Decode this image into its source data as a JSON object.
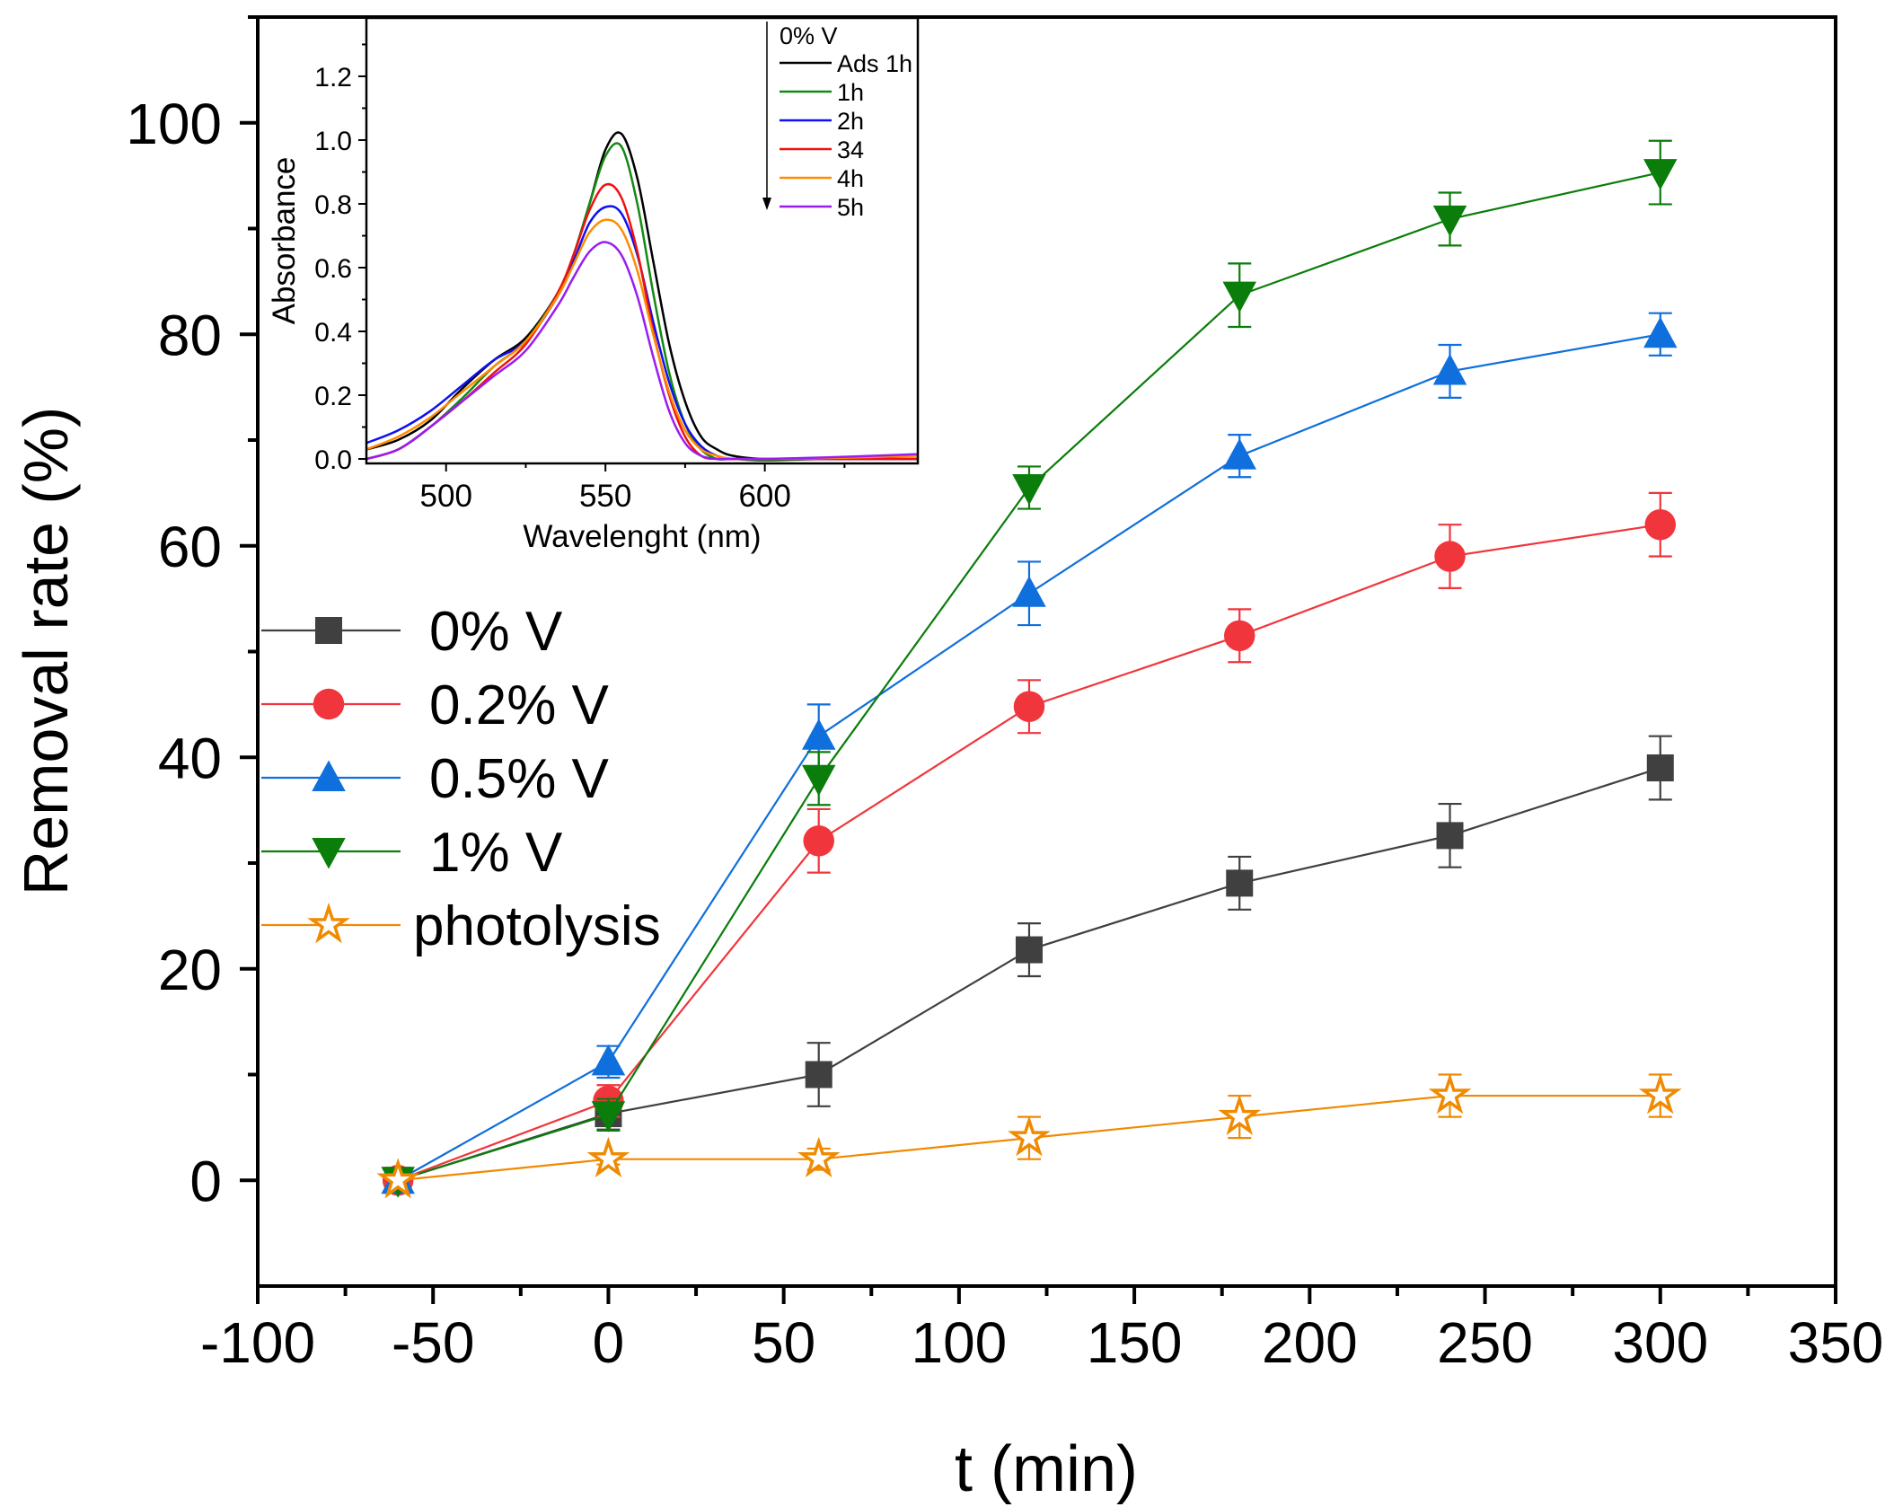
{
  "chart_data": [
    {
      "type": "line",
      "title": "",
      "xlabel": "t (min)",
      "ylabel": "Removal rate (%)",
      "xlim": [
        -100,
        350
      ],
      "ylim": [
        -10,
        110
      ],
      "xticks": [
        -100,
        -50,
        0,
        50,
        100,
        150,
        200,
        250,
        300,
        350
      ],
      "yticks": [
        0,
        20,
        40,
        60,
        80,
        100
      ],
      "legend_position": "center-left",
      "grid": false,
      "x": [
        -60,
        0,
        60,
        120,
        180,
        240,
        300
      ],
      "series": [
        {
          "name": "0% V",
          "marker": "square",
          "color": "#404040",
          "values": [
            0,
            6.3,
            10,
            21.8,
            28.1,
            32.6,
            39
          ],
          "errors": [
            0,
            1.5,
            3,
            2.5,
            2.5,
            3,
            3
          ]
        },
        {
          "name": "0.2% V",
          "marker": "circle",
          "color": "#f0363c",
          "values": [
            0,
            7.5,
            32.1,
            44.8,
            51.5,
            59,
            62
          ],
          "errors": [
            0,
            1.5,
            3,
            2.5,
            2.5,
            3,
            3
          ]
        },
        {
          "name": "0.5% V",
          "marker": "triangle-up",
          "color": "#0f6fdc",
          "values": [
            0,
            11.2,
            42,
            55.5,
            68.5,
            76.5,
            80
          ],
          "errors": [
            0,
            1.5,
            3,
            3,
            2,
            2.5,
            2
          ]
        },
        {
          "name": "1% V",
          "marker": "triangle-down",
          "color": "#0a7d0a",
          "values": [
            0,
            6.2,
            38,
            65.5,
            83.7,
            90.9,
            95.3
          ],
          "errors": [
            0,
            1.5,
            2.5,
            2,
            3,
            2.5,
            3
          ]
        },
        {
          "name": "photolysis",
          "marker": "star-open",
          "color": "#f08a00",
          "values": [
            0,
            2,
            2,
            4,
            6,
            8,
            8
          ],
          "errors": [
            0,
            0.5,
            1,
            2,
            2,
            2,
            2
          ]
        }
      ]
    },
    {
      "type": "line",
      "title": "",
      "xlabel": "Wavelenght (nm)",
      "ylabel": "Absorbance",
      "xlim": [
        475,
        648
      ],
      "ylim": [
        -0.014,
        1.383
      ],
      "xticks": [
        500,
        550,
        600
      ],
      "yticks": [
        "0.0",
        "0.2",
        "0.4",
        "0.6",
        "0.8",
        "1.0",
        "1.2"
      ],
      "legend_title": "0% V",
      "legend_position": "top-right",
      "x": [
        475,
        485,
        495,
        505,
        515,
        525,
        535,
        540,
        545,
        550,
        555,
        560,
        565,
        570,
        575,
        580,
        585,
        590,
        600,
        620,
        648
      ],
      "series": [
        {
          "name": "Ads 1h",
          "color": "#000000",
          "values": [
            0.03,
            0.06,
            0.12,
            0.22,
            0.31,
            0.38,
            0.52,
            0.64,
            0.8,
            0.97,
            1.02,
            0.88,
            0.62,
            0.36,
            0.18,
            0.07,
            0.03,
            0.01,
            0,
            0,
            0
          ]
        },
        {
          "name": "1h",
          "color": "#138a13",
          "values": [
            0,
            0.03,
            0.1,
            0.19,
            0.29,
            0.37,
            0.52,
            0.64,
            0.8,
            0.95,
            0.98,
            0.8,
            0.52,
            0.27,
            0.11,
            0.03,
            0,
            0,
            -0.005,
            0,
            0
          ]
        },
        {
          "name": "2h",
          "color": "#1010f0",
          "values": [
            0.05,
            0.09,
            0.15,
            0.23,
            0.31,
            0.37,
            0.51,
            0.62,
            0.74,
            0.79,
            0.77,
            0.64,
            0.43,
            0.24,
            0.11,
            0.04,
            0.01,
            0,
            0,
            0,
            0
          ]
        },
        {
          "name": "34",
          "color": "#f01010",
          "values": [
            0,
            0.03,
            0.1,
            0.18,
            0.27,
            0.36,
            0.52,
            0.64,
            0.78,
            0.86,
            0.82,
            0.65,
            0.4,
            0.2,
            0.07,
            0.01,
            0,
            0,
            0,
            0,
            0
          ]
        },
        {
          "name": "4h",
          "color": "#ff8c00",
          "values": [
            0.03,
            0.07,
            0.13,
            0.21,
            0.29,
            0.37,
            0.51,
            0.61,
            0.71,
            0.75,
            0.72,
            0.59,
            0.39,
            0.21,
            0.09,
            0.03,
            0.01,
            0,
            0,
            0.003,
            0.01
          ]
        },
        {
          "name": "5h",
          "color": "#9b1cf0",
          "values": [
            0,
            0.03,
            0.1,
            0.18,
            0.26,
            0.34,
            0.48,
            0.57,
            0.65,
            0.68,
            0.64,
            0.51,
            0.32,
            0.15,
            0.05,
            0.01,
            0,
            0,
            0,
            0.005,
            0.015
          ]
        }
      ]
    }
  ]
}
